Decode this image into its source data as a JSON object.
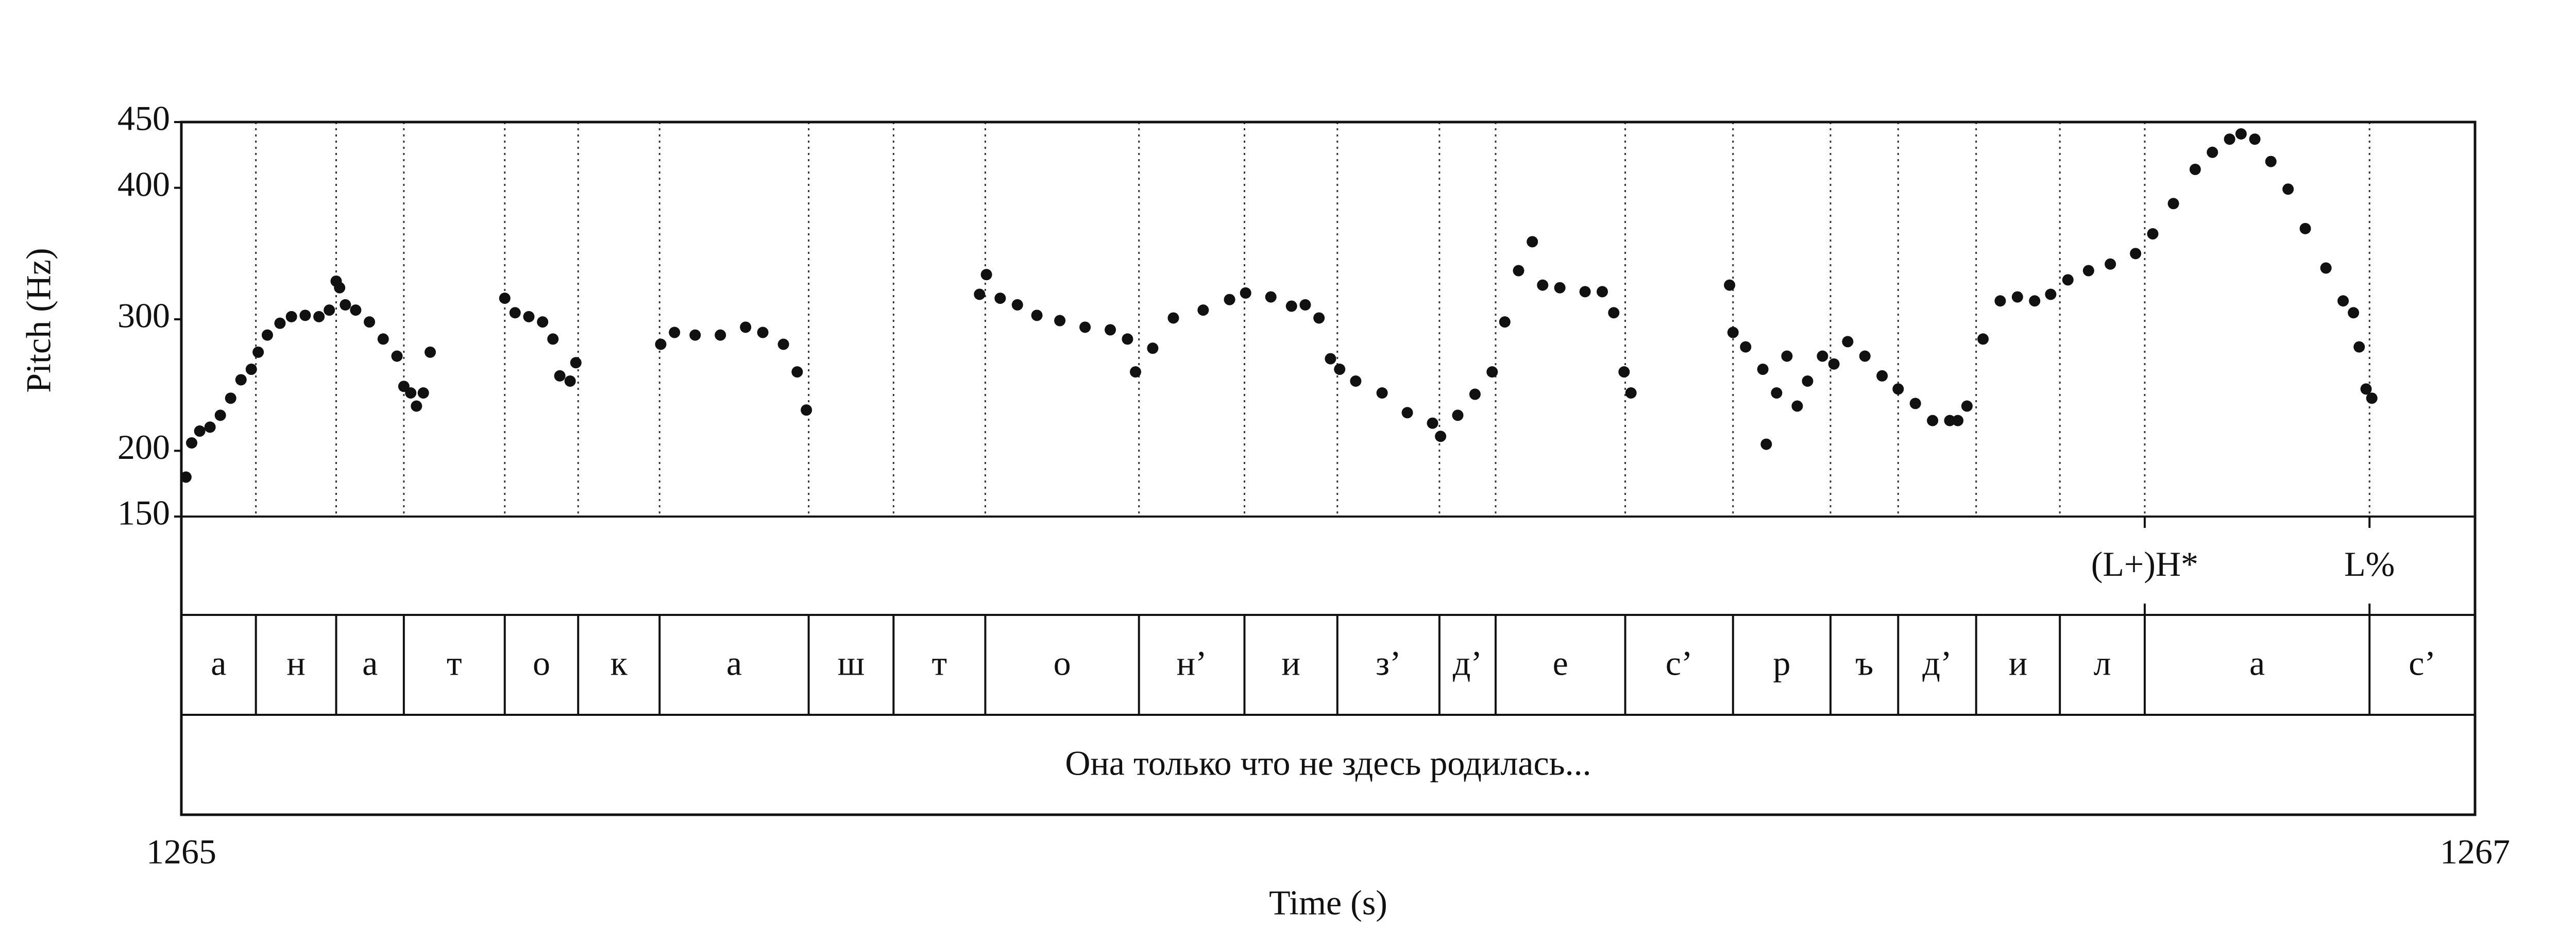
{
  "chart_data": {
    "type": "scatter",
    "xlabel": "Time (s)",
    "ylabel": "Pitch (Hz)",
    "color": "#111111",
    "xlim": [
      1265,
      1267
    ],
    "xticks": [
      1265,
      1267
    ],
    "ylim": [
      150,
      450
    ],
    "yticks": [
      150,
      200,
      300,
      400,
      450
    ],
    "x": [
      1265.004,
      1265.009,
      1265.016,
      1265.025,
      1265.034,
      1265.043,
      1265.052,
      1265.061,
      1265.067,
      1265.075,
      1265.086,
      1265.096,
      1265.108,
      1265.12,
      1265.129,
      1265.135,
      1265.138,
      1265.143,
      1265.152,
      1265.164,
      1265.176,
      1265.188,
      1265.194,
      1265.2,
      1265.205,
      1265.211,
      1265.217,
      1265.282,
      1265.291,
      1265.303,
      1265.315,
      1265.324,
      1265.33,
      1265.339,
      1265.344,
      1265.418,
      1265.43,
      1265.448,
      1265.47,
      1265.492,
      1265.507,
      1265.525,
      1265.537,
      1265.545,
      1265.696,
      1265.702,
      1265.714,
      1265.729,
      1265.746,
      1265.766,
      1265.788,
      1265.81,
      1265.825,
      1265.832,
      1265.847,
      1265.865,
      1265.891,
      1265.914,
      1265.928,
      1265.95,
      1265.968,
      1265.98,
      1265.992,
      1266.002,
      1266.01,
      1266.024,
      1266.047,
      1266.069,
      1266.091,
      1266.098,
      1266.113,
      1266.128,
      1266.143,
      1266.154,
      1266.166,
      1266.178,
      1266.187,
      1266.202,
      1266.224,
      1266.239,
      1266.249,
      1266.258,
      1266.264,
      1266.35,
      1266.353,
      1266.364,
      1266.379,
      1266.382,
      1266.391,
      1266.4,
      1266.409,
      1266.418,
      1266.431,
      1266.441,
      1266.453,
      1266.468,
      1266.483,
      1266.497,
      1266.512,
      1266.527,
      1266.542,
      1266.549,
      1266.557,
      1266.571,
      1266.586,
      1266.601,
      1266.616,
      1266.63,
      1266.645,
      1266.663,
      1266.682,
      1266.704,
      1266.719,
      1266.737,
      1266.756,
      1266.771,
      1266.786,
      1266.796,
      1266.808,
      1266.822,
      1266.837,
      1266.852,
      1266.87,
      1266.885,
      1266.894,
      1266.899,
      1266.905,
      1266.91
    ],
    "y": [
      180,
      206,
      215,
      218,
      227,
      240,
      254,
      262,
      275,
      288,
      297,
      302,
      303,
      302,
      307,
      329,
      324,
      311,
      307,
      298,
      285,
      272,
      249,
      244,
      234,
      244,
      275,
      316,
      305,
      302,
      298,
      285,
      257,
      253,
      267,
      281,
      290,
      288,
      288,
      294,
      290,
      281,
      260,
      231,
      319,
      334,
      316,
      311,
      303,
      299,
      294,
      292,
      285,
      260,
      278,
      301,
      307,
      315,
      320,
      317,
      310,
      311,
      301,
      270,
      262,
      253,
      244,
      229,
      221,
      211,
      227,
      243,
      260,
      298,
      337,
      359,
      326,
      324,
      321,
      321,
      305,
      260,
      244,
      326,
      290,
      279,
      262,
      205,
      244,
      272,
      234,
      253,
      272,
      266,
      283,
      272,
      257,
      247,
      236,
      223,
      223,
      223,
      234,
      285,
      314,
      317,
      314,
      319,
      330,
      337,
      342,
      350,
      365,
      388,
      414,
      427,
      437,
      441,
      437,
      420,
      399,
      369,
      339,
      314,
      305,
      279,
      247,
      240
    ],
    "tiers": [
      {
        "kind": "point",
        "labels": [
          "(L+)H*",
          "L%"
        ],
        "times": [
          1266.712,
          1266.908
        ]
      },
      {
        "kind": "interval",
        "labels": [
          "а",
          "н",
          "а",
          "т",
          "о",
          "к",
          "а",
          "ш",
          "т",
          "о",
          "н’",
          "и",
          "з’",
          "д’",
          "е",
          "с’",
          "р",
          "ъ",
          "д’",
          "и",
          "л",
          "а",
          "с’"
        ],
        "boundaries": [
          1265.065,
          1265.135,
          1265.194,
          1265.282,
          1265.346,
          1265.417,
          1265.547,
          1265.621,
          1265.701,
          1265.835,
          1265.927,
          1266.008,
          1266.097,
          1266.146,
          1266.259,
          1266.353,
          1266.438,
          1266.497,
          1266.565,
          1266.638,
          1266.712,
          1266.908
        ]
      },
      {
        "kind": "interval",
        "labels": [
          "Она только что не здесь родилась..."
        ],
        "boundaries": []
      }
    ]
  }
}
